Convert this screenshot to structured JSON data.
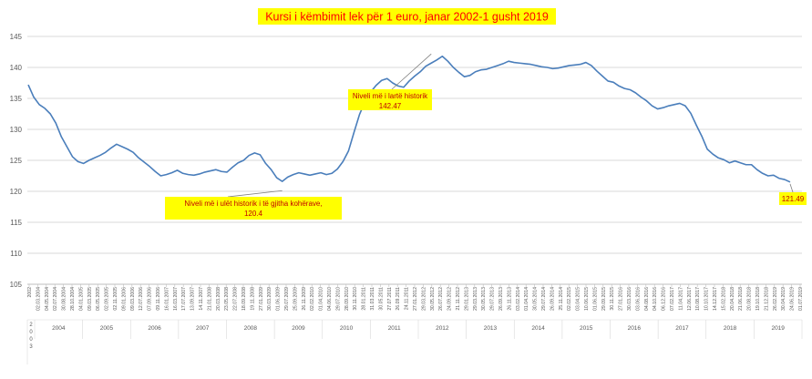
{
  "chart_data": {
    "type": "line",
    "title": "Kursi i këmbimit lek për 1 euro, janar 2002-1 gusht 2019",
    "xlabel": "",
    "ylabel": "",
    "ylim": [
      105,
      145
    ],
    "yticks": [
      105,
      110,
      115,
      120,
      125,
      130,
      135,
      140,
      145
    ],
    "grid": true,
    "legend": "none",
    "colors": {
      "line": "#4a7ebb",
      "title_bg": "#ffff00",
      "title_text": "#ff0000",
      "label_bg": "#ffff00",
      "label_text": "#c00000",
      "grid": "#d9d9d9"
    },
    "years": [
      "2003",
      "2004",
      "2005",
      "2006",
      "2007",
      "2008",
      "2009",
      "2010",
      "2011",
      "2012",
      "2013",
      "2014",
      "2015",
      "2016",
      "2017",
      "2018",
      "2019"
    ],
    "date_ticks": [
      "2002",
      "02.03.2004",
      "04.05.2004",
      "02.07.2004",
      "30.08.2004",
      "28.10.2004",
      "04.01.2005",
      "09.03.2005",
      "06.05.2005",
      "02.09.2005",
      "02.11.2005",
      "09.01.2006",
      "09.03.2006",
      "12.07.2006",
      "07.09.2006",
      "09.11.2006",
      "16.01.2007",
      "16.03.2007",
      "17.07.2007",
      "13.09.2007",
      "14.11.2007",
      "21.01.2008",
      "20.03.2008",
      "23.05.2008",
      "22.07.2008",
      "18.09.2008",
      "19.11.2008",
      "27.01.2009",
      "30.03.2009",
      "01.06.2009",
      "29.07.2009",
      "25.09.2009",
      "26.11.2009",
      "02.02.2010",
      "01.04.2010",
      "04.06.2010",
      "29.07.2010",
      "28.09.2010",
      "30.11.2010",
      "28.01.2011",
      "31.03.2011",
      "30.05.2011",
      "27.07.2011",
      "26.09.2011",
      "24.11.2011",
      "27.01.2012",
      "29.03.2012",
      "30.05.2012",
      "26.07.2012",
      "24.09.2012",
      "21.11.2012",
      "29.01.2013",
      "29.03.2013",
      "30.05.2013",
      "29.07.2013",
      "26.09.2013",
      "26.11.2013",
      "03.02.2014",
      "01.04.2014",
      "30.05.2014",
      "29.07.2014",
      "26.09.2014",
      "25.11.2014",
      "02.02.2015",
      "03.04.2015",
      "10.06.2015",
      "01.06.2015",
      "29.09.2015",
      "30.11.2015",
      "27.01.2016",
      "30.03.2016",
      "03.06.2016",
      "04.08.2016",
      "04.10.2016",
      "06.12.2016",
      "07.02.2017",
      "11.04.2017",
      "12.06.2017",
      "10.08.2017",
      "10.10.2017",
      "14.12.2017",
      "15.02.2018",
      "20.04.2018",
      "21.06.2018",
      "20.08.2018",
      "19.10.2018",
      "21.12.2018",
      "26.02.2019",
      "30.04.2019",
      "24.06.2019",
      "01.07.2019"
    ],
    "series": [
      {
        "values": [
          137.2,
          135.2,
          134.0,
          133.4,
          132.5,
          131.0,
          128.8,
          127.2,
          125.6,
          124.8,
          124.5,
          125.0,
          125.4,
          125.8,
          126.3,
          127.0,
          127.6,
          127.2,
          126.8,
          126.3,
          125.4,
          124.7,
          124.0,
          123.2,
          122.5,
          122.7,
          123.0,
          123.4,
          122.9,
          122.7,
          122.6,
          122.8,
          123.1,
          123.3,
          123.5,
          123.2,
          123.1,
          123.9,
          124.6,
          125.0,
          125.8,
          126.2,
          125.9,
          124.5,
          123.5,
          122.2,
          121.6,
          122.3,
          122.7,
          123.0,
          122.8,
          122.6,
          122.8,
          123.0,
          122.7,
          122.9,
          123.6,
          124.8,
          126.5,
          129.5,
          132.4,
          134.5,
          136.0,
          137.1,
          137.9,
          138.2,
          137.5,
          137.0,
          136.8,
          137.8,
          138.6,
          139.3,
          140.2,
          140.7,
          141.2,
          141.8,
          141.0,
          140.0,
          139.2,
          138.5,
          138.7,
          139.3,
          139.6,
          139.7,
          140.0,
          140.3,
          140.6,
          141.0,
          140.8,
          140.7,
          140.6,
          140.5,
          140.3,
          140.1,
          140.0,
          139.8,
          139.9,
          140.1,
          140.3,
          140.4,
          140.5,
          140.8,
          140.3,
          139.4,
          138.6,
          137.8,
          137.6,
          137.0,
          136.6,
          136.4,
          135.9,
          135.2,
          134.6,
          133.8,
          133.3,
          133.5,
          133.8,
          134.0,
          134.2,
          133.8,
          132.6,
          130.7,
          128.9,
          126.8,
          126.0,
          125.4,
          125.1,
          124.6,
          124.9,
          124.6,
          124.3,
          124.3,
          123.5,
          122.9,
          122.5,
          122.6,
          122.1,
          121.9,
          121.5
        ]
      }
    ],
    "annotations": [
      {
        "text": "Niveli më i ulët historik i të gjitha kohërave,\n120.4",
        "value": 120.4
      },
      {
        "text": "Niveli më i lartë historik\n142.47",
        "value": 142.47
      },
      {
        "text": "121.49",
        "value": 121.49
      }
    ]
  }
}
